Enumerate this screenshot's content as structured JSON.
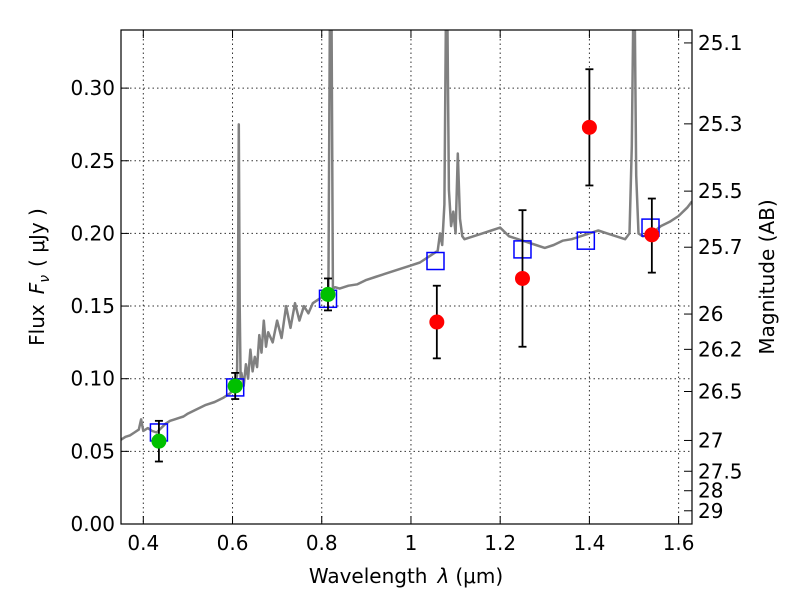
{
  "chart_data": {
    "type": "scatter",
    "xlabel": "Wavelength",
    "xlabel_symbol": "λ",
    "xlabel_unit": "(μm)",
    "ylabel": "Flux",
    "ylabel_symbol": "F",
    "ylabel_subscript": "ν",
    "ylabel_unit": "( μJy )",
    "y2label": "Magnitude (AB)",
    "xlim": [
      0.35,
      1.63
    ],
    "ylim": [
      0.0,
      0.34
    ],
    "grid": true,
    "x_ticks": [
      0.4,
      0.6,
      0.8,
      1.0,
      1.2,
      1.4,
      1.6
    ],
    "x_tick_labels": [
      "0.4",
      "0.6",
      "0.8",
      "1",
      "1.2",
      "1.4",
      "1.6"
    ],
    "y_ticks": [
      0.0,
      0.05,
      0.1,
      0.15,
      0.2,
      0.25,
      0.3
    ],
    "y_tick_labels": [
      "0.00",
      "0.05",
      "0.10",
      "0.15",
      "0.20",
      "0.25",
      "0.30"
    ],
    "y2_ticks": [
      {
        "label": "25.1",
        "flux": 0.3311
      },
      {
        "label": "25.3",
        "flux": 0.2754
      },
      {
        "label": "25.5",
        "flux": 0.2291
      },
      {
        "label": "25.7",
        "flux": 0.1905
      },
      {
        "label": "26",
        "flux": 0.1445
      },
      {
        "label": "26.2",
        "flux": 0.1202
      },
      {
        "label": "26.5",
        "flux": 0.0912
      },
      {
        "label": "27",
        "flux": 0.0575
      },
      {
        "label": "27.5",
        "flux": 0.0363
      },
      {
        "label": "28",
        "flux": 0.0229
      },
      {
        "label": "29",
        "flux": 0.0091
      }
    ],
    "series": [
      {
        "kind": "model_spectrum",
        "color": "#808080",
        "points": [
          [
            0.35,
            0.058
          ],
          [
            0.36,
            0.06
          ],
          [
            0.37,
            0.061
          ],
          [
            0.38,
            0.063
          ],
          [
            0.39,
            0.065
          ],
          [
            0.395,
            0.072
          ],
          [
            0.4,
            0.064
          ],
          [
            0.41,
            0.066
          ],
          [
            0.42,
            0.064
          ],
          [
            0.43,
            0.063
          ],
          [
            0.44,
            0.066
          ],
          [
            0.45,
            0.069
          ],
          [
            0.46,
            0.071
          ],
          [
            0.47,
            0.072
          ],
          [
            0.48,
            0.073
          ],
          [
            0.49,
            0.074
          ],
          [
            0.5,
            0.076
          ],
          [
            0.52,
            0.079
          ],
          [
            0.54,
            0.082
          ],
          [
            0.56,
            0.084
          ],
          [
            0.58,
            0.087
          ],
          [
            0.595,
            0.09
          ],
          [
            0.6,
            0.093
          ],
          [
            0.605,
            0.096
          ],
          [
            0.61,
            0.102
          ],
          [
            0.612,
            0.15
          ],
          [
            0.614,
            0.275
          ],
          [
            0.616,
            0.15
          ],
          [
            0.618,
            0.1
          ],
          [
            0.62,
            0.104
          ],
          [
            0.625,
            0.095
          ],
          [
            0.63,
            0.11
          ],
          [
            0.635,
            0.1
          ],
          [
            0.64,
            0.12
          ],
          [
            0.645,
            0.105
          ],
          [
            0.65,
            0.115
          ],
          [
            0.655,
            0.108
          ],
          [
            0.66,
            0.13
          ],
          [
            0.665,
            0.118
          ],
          [
            0.67,
            0.14
          ],
          [
            0.675,
            0.122
          ],
          [
            0.68,
            0.132
          ],
          [
            0.69,
            0.125
          ],
          [
            0.7,
            0.14
          ],
          [
            0.71,
            0.128
          ],
          [
            0.72,
            0.15
          ],
          [
            0.73,
            0.135
          ],
          [
            0.74,
            0.152
          ],
          [
            0.75,
            0.14
          ],
          [
            0.76,
            0.15
          ],
          [
            0.77,
            0.145
          ],
          [
            0.78,
            0.152
          ],
          [
            0.79,
            0.154
          ],
          [
            0.8,
            0.156
          ],
          [
            0.81,
            0.157
          ],
          [
            0.815,
            0.16
          ],
          [
            0.818,
            0.34
          ],
          [
            0.822,
            0.34
          ],
          [
            0.825,
            0.162
          ],
          [
            0.83,
            0.163
          ],
          [
            0.84,
            0.162
          ],
          [
            0.86,
            0.164
          ],
          [
            0.88,
            0.165
          ],
          [
            0.9,
            0.168
          ],
          [
            0.92,
            0.17
          ],
          [
            0.94,
            0.172
          ],
          [
            0.96,
            0.174
          ],
          [
            0.98,
            0.176
          ],
          [
            1.0,
            0.178
          ],
          [
            1.02,
            0.18
          ],
          [
            1.04,
            0.184
          ],
          [
            1.06,
            0.188
          ],
          [
            1.065,
            0.2
          ],
          [
            1.07,
            0.192
          ],
          [
            1.075,
            0.22
          ],
          [
            1.078,
            0.34
          ],
          [
            1.082,
            0.34
          ],
          [
            1.085,
            0.23
          ],
          [
            1.09,
            0.205
          ],
          [
            1.095,
            0.215
          ],
          [
            1.1,
            0.2
          ],
          [
            1.105,
            0.255
          ],
          [
            1.11,
            0.21
          ],
          [
            1.115,
            0.198
          ],
          [
            1.12,
            0.196
          ],
          [
            1.14,
            0.198
          ],
          [
            1.16,
            0.2
          ],
          [
            1.18,
            0.202
          ],
          [
            1.2,
            0.204
          ],
          [
            1.22,
            0.198
          ],
          [
            1.24,
            0.196
          ],
          [
            1.26,
            0.194
          ],
          [
            1.28,
            0.192
          ],
          [
            1.3,
            0.19
          ],
          [
            1.32,
            0.192
          ],
          [
            1.34,
            0.195
          ],
          [
            1.36,
            0.196
          ],
          [
            1.38,
            0.198
          ],
          [
            1.4,
            0.2
          ],
          [
            1.42,
            0.202
          ],
          [
            1.44,
            0.2
          ],
          [
            1.46,
            0.198
          ],
          [
            1.48,
            0.196
          ],
          [
            1.49,
            0.2
          ],
          [
            1.495,
            0.26
          ],
          [
            1.498,
            0.34
          ],
          [
            1.502,
            0.34
          ],
          [
            1.505,
            0.24
          ],
          [
            1.51,
            0.2
          ],
          [
            1.52,
            0.198
          ],
          [
            1.54,
            0.2
          ],
          [
            1.56,
            0.205
          ],
          [
            1.58,
            0.208
          ],
          [
            1.6,
            0.212
          ],
          [
            1.62,
            0.218
          ],
          [
            1.63,
            0.222
          ]
        ]
      },
      {
        "kind": "model_band_flux",
        "marker": "open-square",
        "color": "#0000ff",
        "points": [
          {
            "x": 0.435,
            "y": 0.063
          },
          {
            "x": 0.606,
            "y": 0.094
          },
          {
            "x": 0.814,
            "y": 0.155
          },
          {
            "x": 1.055,
            "y": 0.181
          },
          {
            "x": 1.25,
            "y": 0.189
          },
          {
            "x": 1.392,
            "y": 0.195
          },
          {
            "x": 1.537,
            "y": 0.204
          }
        ]
      },
      {
        "kind": "observed_detections",
        "marker": "filled-circle",
        "color": "#00c000",
        "points": [
          {
            "x": 0.435,
            "y": 0.057,
            "err_low": 0.014,
            "err_high": 0.014
          },
          {
            "x": 0.606,
            "y": 0.095,
            "err_low": 0.009,
            "err_high": 0.009
          },
          {
            "x": 0.814,
            "y": 0.158,
            "err_low": 0.011,
            "err_high": 0.011
          }
        ]
      },
      {
        "kind": "observed_upper",
        "marker": "filled-circle",
        "color": "#ff0000",
        "points": [
          {
            "x": 1.058,
            "y": 0.139,
            "err_low": 0.025,
            "err_high": 0.025
          },
          {
            "x": 1.25,
            "y": 0.169,
            "err_low": 0.047,
            "err_high": 0.047
          },
          {
            "x": 1.4,
            "y": 0.273,
            "err_low": 0.04,
            "err_high": 0.04
          },
          {
            "x": 1.54,
            "y": 0.199,
            "err_low": 0.026,
            "err_high": 0.025
          }
        ]
      }
    ]
  }
}
